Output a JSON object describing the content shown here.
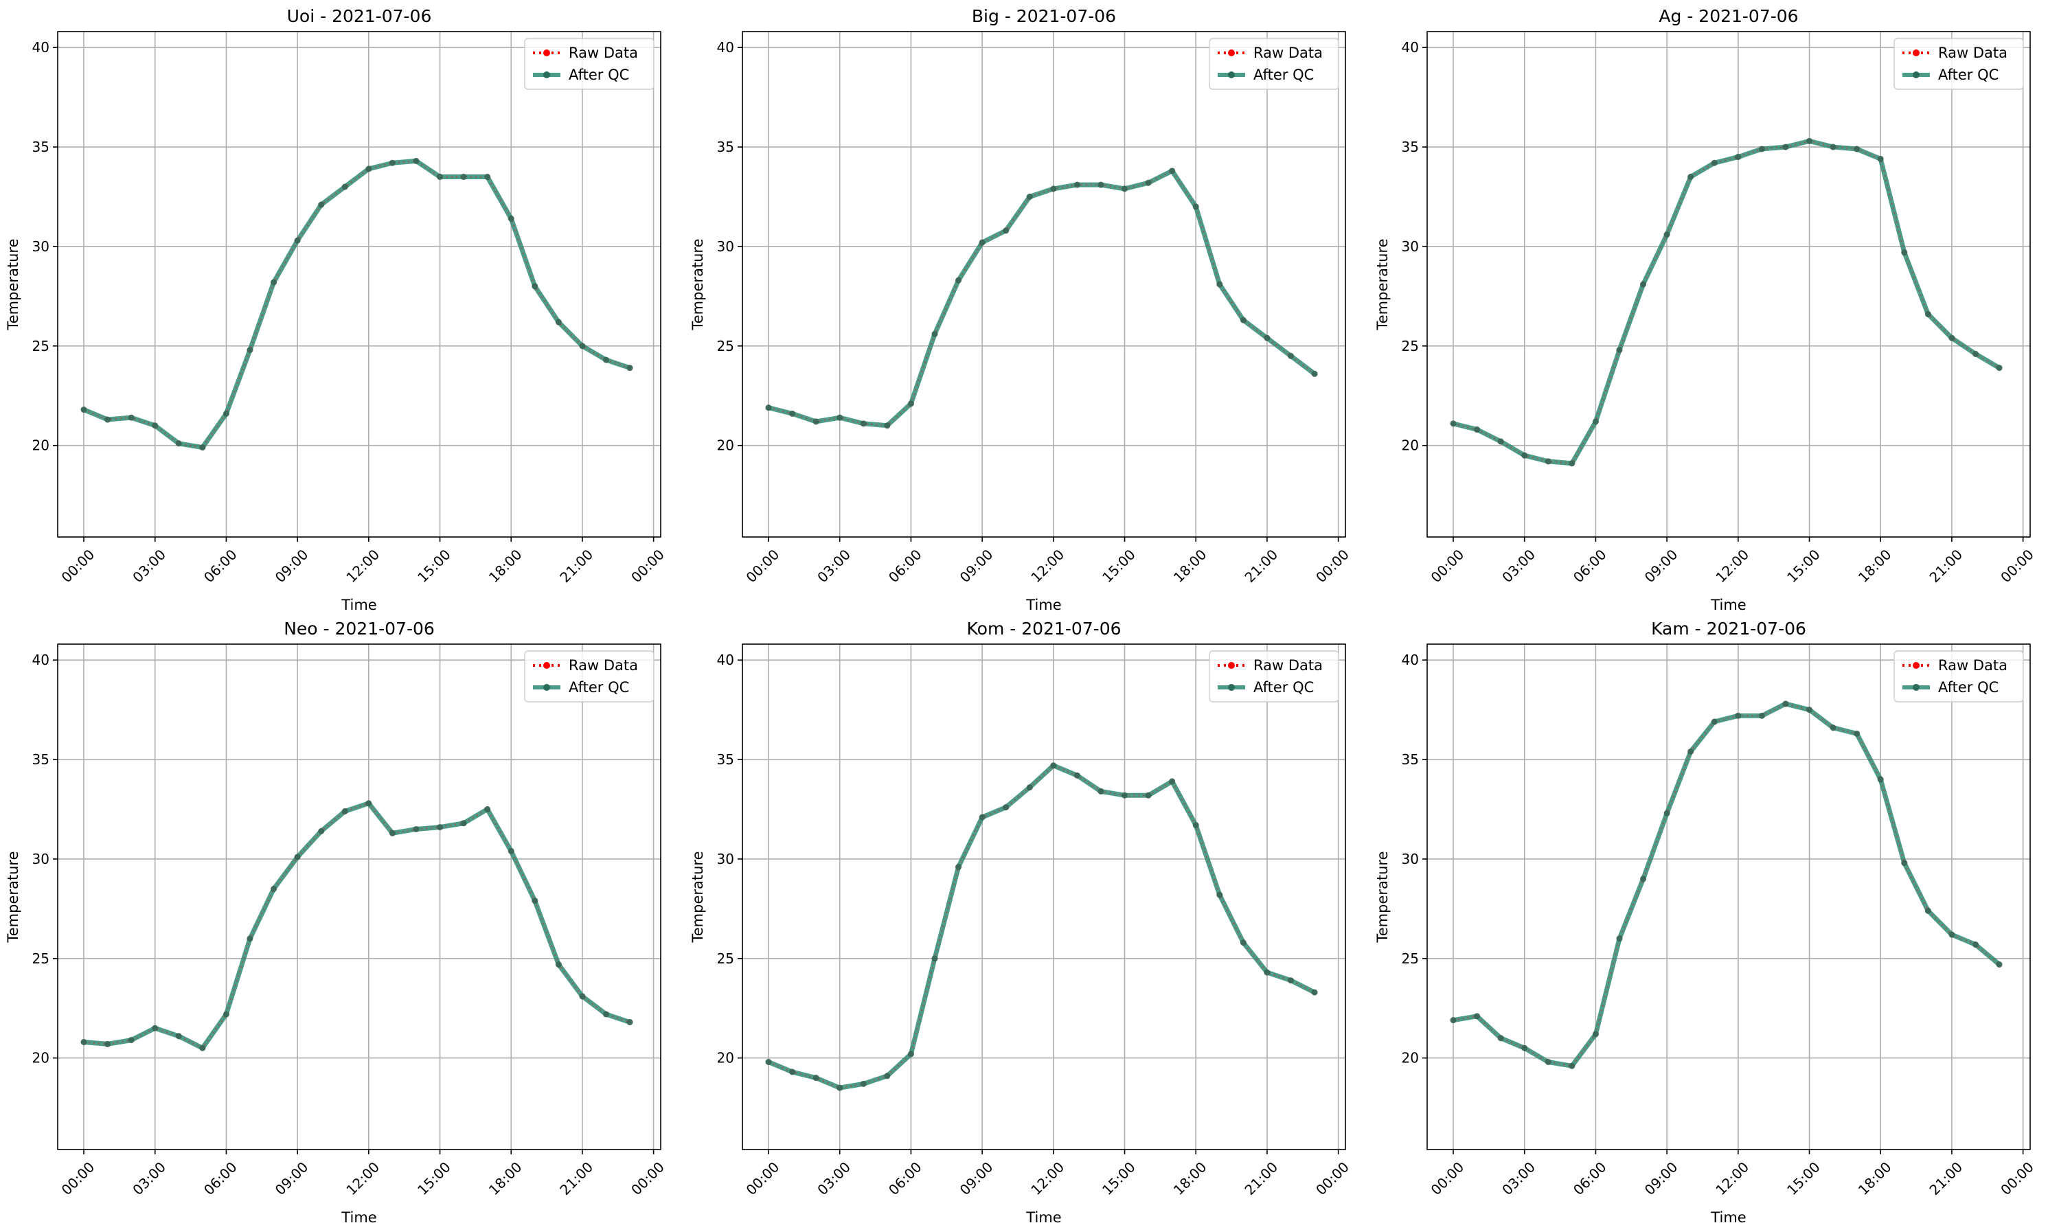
{
  "chart_data": [
    {
      "type": "line",
      "title": "Uoi - 2021-07-06",
      "xlabel": "Time",
      "ylabel": "Temperature",
      "ylim": [
        15.4,
        40.8
      ],
      "yticks": [
        "20",
        "25",
        "30",
        "35",
        "40"
      ],
      "xticks": [
        "00:00",
        "03:00",
        "06:00",
        "09:00",
        "12:00",
        "15:00",
        "18:00",
        "21:00",
        "00:00"
      ],
      "grid": true,
      "legend_position": "top-right",
      "series": [
        {
          "name": "Raw Data",
          "color": "#ff0000",
          "style": "dotted",
          "marker": "dot",
          "values": [
            21.8,
            21.3,
            21.4,
            21.0,
            20.1,
            19.9,
            21.6,
            24.8,
            28.2,
            30.3,
            32.1,
            33.0,
            33.9,
            34.2,
            34.3,
            33.5,
            33.5,
            33.5,
            31.4,
            28.0,
            26.2,
            25.0,
            24.3,
            23.9
          ]
        },
        {
          "name": "After QC",
          "color": "#2e8b74",
          "style": "solid",
          "marker": "dot",
          "values": [
            21.8,
            21.3,
            21.4,
            21.0,
            20.1,
            19.9,
            21.6,
            24.8,
            28.2,
            30.3,
            32.1,
            33.0,
            33.9,
            34.2,
            34.3,
            33.5,
            33.5,
            33.5,
            31.4,
            28.0,
            26.2,
            25.0,
            24.3,
            23.9
          ]
        }
      ]
    },
    {
      "type": "line",
      "title": "Big - 2021-07-06",
      "xlabel": "Time",
      "ylabel": "Temperature",
      "ylim": [
        15.4,
        40.8
      ],
      "yticks": [
        "20",
        "25",
        "30",
        "35",
        "40"
      ],
      "xticks": [
        "00:00",
        "03:00",
        "06:00",
        "09:00",
        "12:00",
        "15:00",
        "18:00",
        "21:00",
        "00:00"
      ],
      "grid": true,
      "legend_position": "top-right",
      "series": [
        {
          "name": "Raw Data",
          "color": "#ff0000",
          "style": "dotted",
          "marker": "dot",
          "values": [
            21.9,
            21.6,
            21.2,
            21.4,
            21.1,
            21.0,
            22.1,
            25.6,
            28.3,
            30.2,
            30.8,
            32.5,
            32.9,
            33.1,
            33.1,
            32.9,
            33.2,
            33.8,
            32.0,
            28.1,
            26.3,
            25.4,
            24.5,
            23.6
          ]
        },
        {
          "name": "After QC",
          "color": "#2e8b74",
          "style": "solid",
          "marker": "dot",
          "values": [
            21.9,
            21.6,
            21.2,
            21.4,
            21.1,
            21.0,
            22.1,
            25.6,
            28.3,
            30.2,
            30.8,
            32.5,
            32.9,
            33.1,
            33.1,
            32.9,
            33.2,
            33.8,
            32.0,
            28.1,
            26.3,
            25.4,
            24.5,
            23.6
          ]
        }
      ]
    },
    {
      "type": "line",
      "title": "Ag - 2021-07-06",
      "xlabel": "Time",
      "ylabel": "Temperature",
      "ylim": [
        15.4,
        40.8
      ],
      "yticks": [
        "20",
        "25",
        "30",
        "35",
        "40"
      ],
      "xticks": [
        "00:00",
        "03:00",
        "06:00",
        "09:00",
        "12:00",
        "15:00",
        "18:00",
        "21:00",
        "00:00"
      ],
      "grid": true,
      "legend_position": "top-right",
      "series": [
        {
          "name": "Raw Data",
          "color": "#ff0000",
          "style": "dotted",
          "marker": "dot",
          "values": [
            21.1,
            20.8,
            20.2,
            19.5,
            19.2,
            19.1,
            21.2,
            24.8,
            28.1,
            30.6,
            33.5,
            34.2,
            34.5,
            34.9,
            35.0,
            35.3,
            35.0,
            34.9,
            34.4,
            29.7,
            26.6,
            25.4,
            24.6,
            23.9
          ]
        },
        {
          "name": "After QC",
          "color": "#2e8b74",
          "style": "solid",
          "marker": "dot",
          "values": [
            21.1,
            20.8,
            20.2,
            19.5,
            19.2,
            19.1,
            21.2,
            24.8,
            28.1,
            30.6,
            33.5,
            34.2,
            34.5,
            34.9,
            35.0,
            35.3,
            35.0,
            34.9,
            34.4,
            29.7,
            26.6,
            25.4,
            24.6,
            23.9
          ]
        }
      ]
    },
    {
      "type": "line",
      "title": "Neo - 2021-07-06",
      "xlabel": "Time",
      "ylabel": "Temperature",
      "ylim": [
        15.4,
        40.8
      ],
      "yticks": [
        "20",
        "25",
        "30",
        "35",
        "40"
      ],
      "xticks": [
        "00:00",
        "03:00",
        "06:00",
        "09:00",
        "12:00",
        "15:00",
        "18:00",
        "21:00",
        "00:00"
      ],
      "grid": true,
      "legend_position": "top-right",
      "series": [
        {
          "name": "Raw Data",
          "color": "#ff0000",
          "style": "dotted",
          "marker": "dot",
          "values": [
            20.8,
            20.7,
            20.9,
            21.5,
            21.1,
            20.5,
            22.2,
            26.0,
            28.5,
            30.1,
            31.4,
            32.4,
            32.8,
            31.3,
            31.5,
            31.6,
            31.8,
            32.5,
            30.4,
            27.9,
            24.7,
            23.1,
            22.2,
            21.8
          ]
        },
        {
          "name": "After QC",
          "color": "#2e8b74",
          "style": "solid",
          "marker": "dot",
          "values": [
            20.8,
            20.7,
            20.9,
            21.5,
            21.1,
            20.5,
            22.2,
            26.0,
            28.5,
            30.1,
            31.4,
            32.4,
            32.8,
            31.3,
            31.5,
            31.6,
            31.8,
            32.5,
            30.4,
            27.9,
            24.7,
            23.1,
            22.2,
            21.8
          ]
        }
      ]
    },
    {
      "type": "line",
      "title": "Kom - 2021-07-06",
      "xlabel": "Time",
      "ylabel": "Temperature",
      "ylim": [
        15.4,
        40.8
      ],
      "yticks": [
        "20",
        "25",
        "30",
        "35",
        "40"
      ],
      "xticks": [
        "00:00",
        "03:00",
        "06:00",
        "09:00",
        "12:00",
        "15:00",
        "18:00",
        "21:00",
        "00:00"
      ],
      "grid": true,
      "legend_position": "top-right",
      "series": [
        {
          "name": "Raw Data",
          "color": "#ff0000",
          "style": "dotted",
          "marker": "dot",
          "values": [
            19.8,
            19.3,
            19.0,
            18.5,
            18.7,
            19.1,
            20.2,
            25.0,
            29.6,
            32.1,
            32.6,
            33.6,
            34.7,
            34.2,
            33.4,
            33.2,
            33.2,
            33.9,
            31.7,
            28.2,
            25.8,
            24.3,
            23.9,
            23.3
          ]
        },
        {
          "name": "After QC",
          "color": "#2e8b74",
          "style": "solid",
          "marker": "dot",
          "values": [
            19.8,
            19.3,
            19.0,
            18.5,
            18.7,
            19.1,
            20.2,
            25.0,
            29.6,
            32.1,
            32.6,
            33.6,
            34.7,
            34.2,
            33.4,
            33.2,
            33.2,
            33.9,
            31.7,
            28.2,
            25.8,
            24.3,
            23.9,
            23.3
          ]
        }
      ]
    },
    {
      "type": "line",
      "title": "Kam - 2021-07-06",
      "xlabel": "Time",
      "ylabel": "Temperature",
      "ylim": [
        15.4,
        40.8
      ],
      "yticks": [
        "20",
        "25",
        "30",
        "35",
        "40"
      ],
      "xticks": [
        "00:00",
        "03:00",
        "06:00",
        "09:00",
        "12:00",
        "15:00",
        "18:00",
        "21:00",
        "00:00"
      ],
      "grid": true,
      "legend_position": "top-right",
      "series": [
        {
          "name": "Raw Data",
          "color": "#ff0000",
          "style": "dotted",
          "marker": "dot",
          "values": [
            21.9,
            22.1,
            21.0,
            20.5,
            19.8,
            19.6,
            21.2,
            26.0,
            29.0,
            32.3,
            35.4,
            36.9,
            37.2,
            37.2,
            37.8,
            37.5,
            36.6,
            36.3,
            34.0,
            29.8,
            27.4,
            26.2,
            25.7,
            24.7
          ]
        },
        {
          "name": "After QC",
          "color": "#2e8b74",
          "style": "solid",
          "marker": "dot",
          "values": [
            21.9,
            22.1,
            21.0,
            20.5,
            19.8,
            19.6,
            21.2,
            26.0,
            29.0,
            32.3,
            35.4,
            36.9,
            37.2,
            37.2,
            37.8,
            37.5,
            36.6,
            36.3,
            34.0,
            29.8,
            27.4,
            26.2,
            25.7,
            24.7
          ]
        }
      ]
    }
  ]
}
